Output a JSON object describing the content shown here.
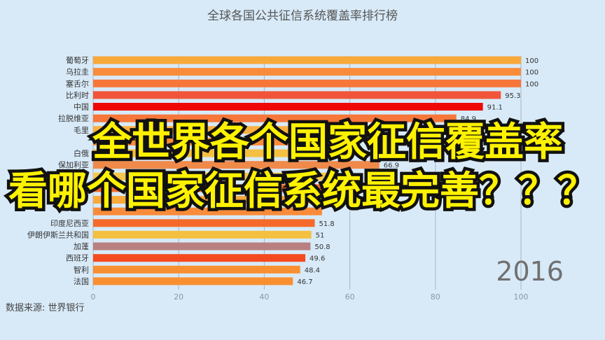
{
  "chart_data": {
    "type": "bar",
    "orientation": "horizontal",
    "title": "全球各国公共征信系统覆盖率排行榜",
    "period_label": "2016",
    "xlim": [
      0,
      100
    ],
    "xticks": [
      0,
      20,
      40,
      60,
      80,
      100
    ],
    "grid": true,
    "bars": [
      {
        "label": "葡萄牙",
        "value": 100,
        "value_label": "100",
        "color": "#f9a83a"
      },
      {
        "label": "乌拉圭",
        "value": 100,
        "value_label": "100",
        "color": "#f98c3a"
      },
      {
        "label": "塞舌尔",
        "value": 100,
        "value_label": "100",
        "color": "#f7763a"
      },
      {
        "label": "比利时",
        "value": 95.3,
        "value_label": "95.3",
        "color": "#f0553a"
      },
      {
        "label": "中国",
        "value": 91.1,
        "value_label": "91.1",
        "color": "#f00808"
      },
      {
        "label": "拉脱维亚",
        "value": 84.9,
        "value_label": "84.9",
        "color": "#f7763a"
      },
      {
        "label": "毛里",
        "value": null,
        "value_label": "",
        "color": "#f9b040"
      },
      {
        "label": "",
        "value": null,
        "value_label": "",
        "color": "#f98c3a"
      },
      {
        "label": "白俄",
        "value": null,
        "value_label": "",
        "color": "#f5c040"
      },
      {
        "label": "保加利亚",
        "value": 66.9,
        "value_label": "66.9",
        "color": "#f08a4a"
      },
      {
        "label": "",
        "value": null,
        "value_label": "",
        "color": "#f5c850"
      },
      {
        "label": "",
        "value": null,
        "value_label": "",
        "color": "#f56a2a"
      },
      {
        "label": "",
        "value": null,
        "value_label": "",
        "color": "#f9a83a"
      },
      {
        "label": "",
        "value": null,
        "value_label": "",
        "color": "#f98c3a"
      },
      {
        "label": "印度尼西亚",
        "value": 51.8,
        "value_label": "51.8",
        "color": "#f56a2a"
      },
      {
        "label": "伊朗伊斯兰共和国",
        "value": 51,
        "value_label": "51",
        "color": "#f5c040"
      },
      {
        "label": "加蓬",
        "value": 50.8,
        "value_label": "50.8",
        "color": "#b88080"
      },
      {
        "label": "西班牙",
        "value": 49.6,
        "value_label": "49.6",
        "color": "#f54a20"
      },
      {
        "label": "智利",
        "value": 48.4,
        "value_label": "48.4",
        "color": "#f98f30"
      },
      {
        "label": "法国",
        "value": 46.7,
        "value_label": "46.7",
        "color": "#f98f30"
      }
    ]
  },
  "source": "数据来源: 世界银行",
  "overlay": {
    "line1": "全世界各个国家征信覆盖率",
    "line2": "看哪个国家征信系统最完善？？？",
    "text_color": "#fff200",
    "stroke_color": "#111111"
  }
}
